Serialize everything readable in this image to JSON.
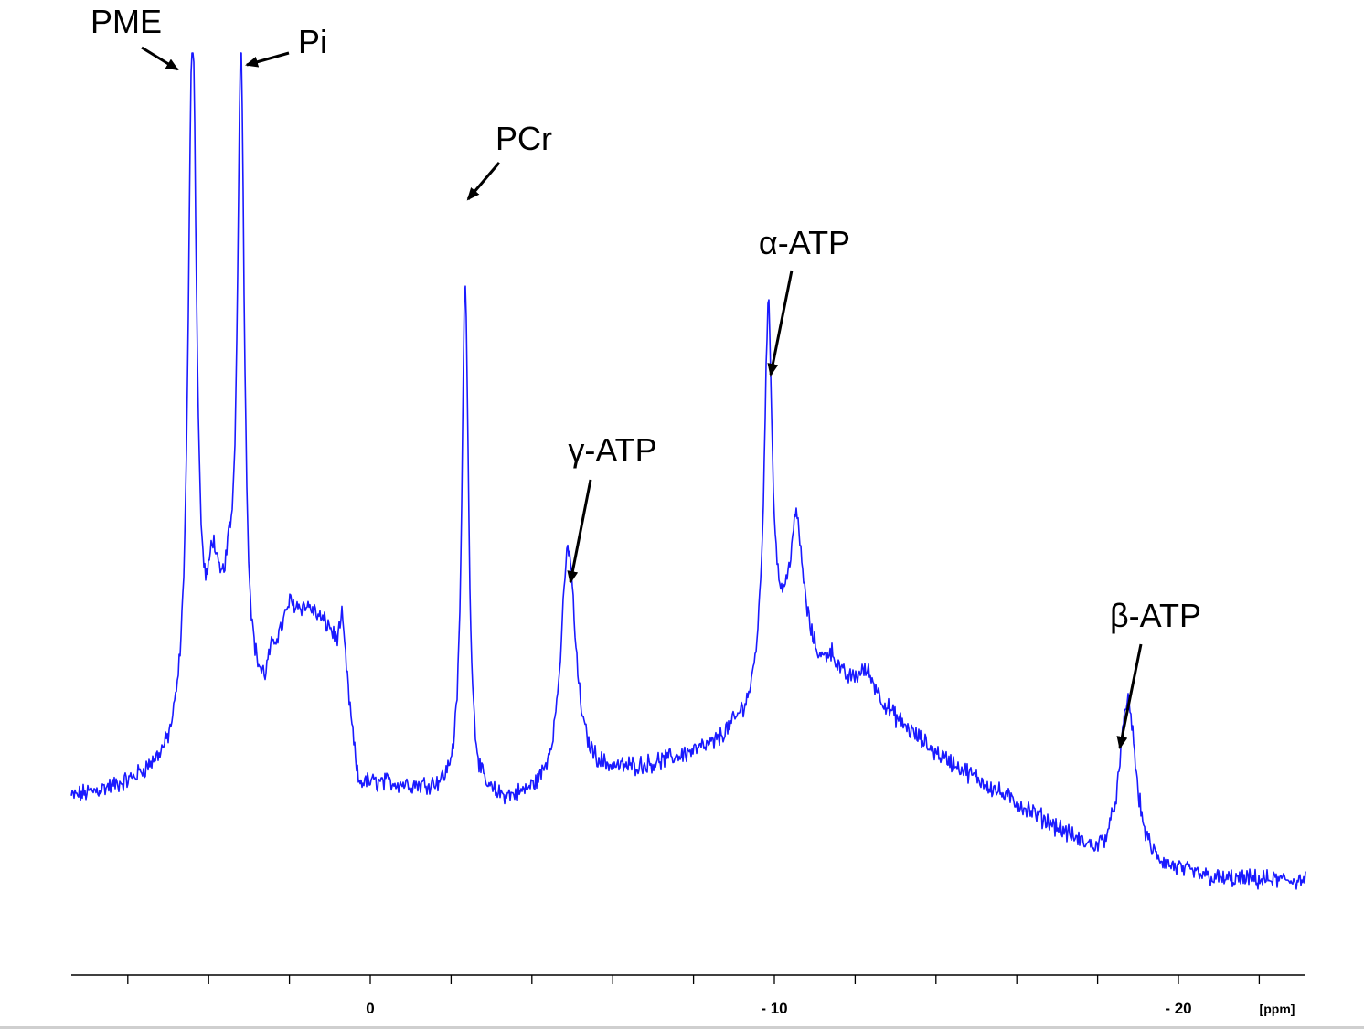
{
  "chart_data": {
    "type": "line",
    "xlabel": "[ppm]",
    "xlim": [
      7.4,
      -23.0
    ],
    "x_ticks": [
      0,
      -10,
      -20
    ],
    "x_tick_labels": [
      "0",
      "- 10",
      "- 20"
    ],
    "x_minor_step": 2,
    "line_color": "#1a1aff",
    "baseline": [
      [
        7.4,
        0.02
      ],
      [
        6.0,
        0.04
      ],
      [
        5.0,
        0.07
      ],
      [
        4.5,
        0.11
      ],
      [
        4.0,
        0.17
      ],
      [
        3.5,
        0.3
      ],
      [
        3.2,
        0.2
      ],
      [
        3.0,
        0.16
      ],
      [
        2.6,
        0.11
      ],
      [
        2.0,
        0.3
      ],
      [
        1.5,
        0.31
      ],
      [
        1.0,
        0.28
      ],
      [
        0.6,
        0.2
      ],
      [
        0.3,
        0.04
      ],
      [
        -0.5,
        0.04
      ],
      [
        -1.5,
        0.03
      ],
      [
        -2.2,
        0.02
      ],
      [
        -2.6,
        0.01
      ],
      [
        -3.5,
        0.01
      ],
      [
        -4.3,
        0.02
      ],
      [
        -5.5,
        0.05
      ],
      [
        -7.0,
        0.07
      ],
      [
        -8.5,
        0.1
      ],
      [
        -9.4,
        0.15
      ],
      [
        -9.8,
        0.22
      ],
      [
        -10.5,
        0.27
      ],
      [
        -11.2,
        0.2
      ],
      [
        -12.2,
        0.18
      ],
      [
        -13.0,
        0.14
      ],
      [
        -14.0,
        0.09
      ],
      [
        -15.5,
        0.03
      ],
      [
        -17.0,
        -0.03
      ],
      [
        -18.0,
        -0.08
      ],
      [
        -19.0,
        -0.1
      ],
      [
        -20.0,
        -0.1
      ],
      [
        -21.0,
        -0.11
      ],
      [
        -23.0,
        -0.11
      ]
    ],
    "peaks": [
      {
        "label": "PME",
        "ppm": 4.4,
        "height": 1.13,
        "width": 0.12
      },
      {
        "label": "",
        "ppm": 3.9,
        "height": 0.15,
        "width": 0.15
      },
      {
        "label": "Pi",
        "ppm": 3.2,
        "height": 0.99,
        "width": 0.1
      },
      {
        "label": "",
        "ppm": 2.5,
        "height": 0.08,
        "width": 0.3
      },
      {
        "label": "",
        "ppm": 0.7,
        "height": 0.08,
        "width": 0.08
      },
      {
        "label": "PCr",
        "ppm": -2.35,
        "height": 0.82,
        "width": 0.1
      },
      {
        "label": "γ-ATP",
        "ppm": -4.9,
        "height": 0.38,
        "width": 0.22
      },
      {
        "label": "α-ATP",
        "ppm": -9.85,
        "height": 0.56,
        "width": 0.12
      },
      {
        "label": "",
        "ppm": -10.55,
        "height": 0.18,
        "width": 0.2
      },
      {
        "label": "",
        "ppm": -11.4,
        "height": 0.04,
        "width": 0.2
      },
      {
        "label": "",
        "ppm": -12.3,
        "height": 0.04,
        "width": 0.3
      },
      {
        "label": "β-ATP",
        "ppm": -18.75,
        "height": 0.27,
        "width": 0.25
      }
    ],
    "ylim": [
      -0.22,
      1.2
    ],
    "noise_amplitude": 0.012,
    "annotations": [
      {
        "text": "PME",
        "target_ppm": 4.4
      },
      {
        "text": "Pi",
        "target_ppm": 3.2
      },
      {
        "text": "PCr",
        "target_ppm": -2.35
      },
      {
        "text": "γ-ATP",
        "target_ppm": -4.9
      },
      {
        "text": "α-ATP",
        "target_ppm": -9.85
      },
      {
        "text": "β-ATP",
        "target_ppm": -18.75
      }
    ]
  }
}
